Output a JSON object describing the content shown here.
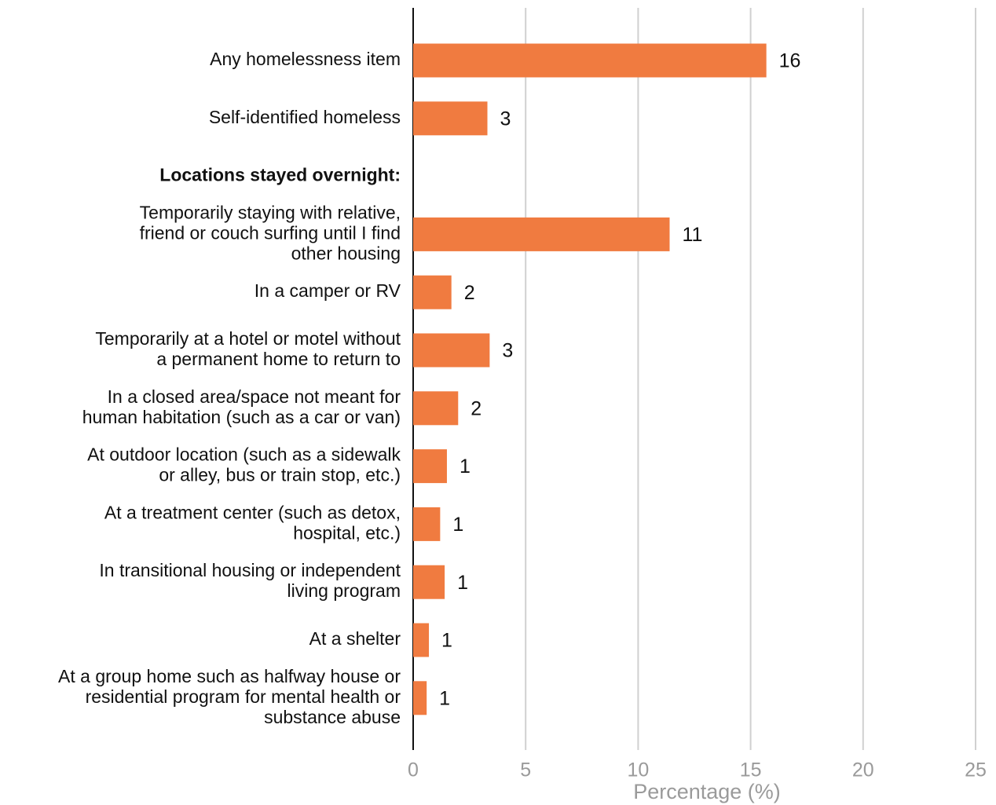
{
  "chart_data": {
    "type": "bar",
    "orientation": "horizontal",
    "categories": [
      "Any homelessness item",
      "Self-identified homeless",
      "Locations stayed overnight:",
      "Temporarily staying with relative,\nfriend or couch surfing until I find\nother housing",
      "In a camper or RV",
      "Temporarily at a hotel or motel without\na permanent home to return to",
      "In a closed area/space not meant for\nhuman habitation (such as a car or van)",
      "At outdoor location (such as a sidewalk\nor alley, bus or train stop, etc.)",
      "At a treatment center (such as detox,\nhospital, etc.)",
      "In transitional housing or independent\nliving program",
      "At a shelter",
      "At a group home such as halfway house or\nresidential program for mental health or\nsubstance abuse"
    ],
    "values": [
      15.7,
      3.3,
      null,
      11.4,
      1.7,
      3.4,
      2.0,
      1.5,
      1.2,
      1.4,
      0.7,
      0.6
    ],
    "value_labels": [
      "16",
      "3",
      null,
      "11",
      "2",
      "3",
      "2",
      "1",
      "1",
      "1",
      "1",
      "1"
    ],
    "color": "#f07b40",
    "xlabel": "Percentage (%)",
    "xlim": [
      0,
      25
    ],
    "xticks": [
      0,
      5,
      10,
      15,
      20,
      25
    ],
    "grid": true
  }
}
